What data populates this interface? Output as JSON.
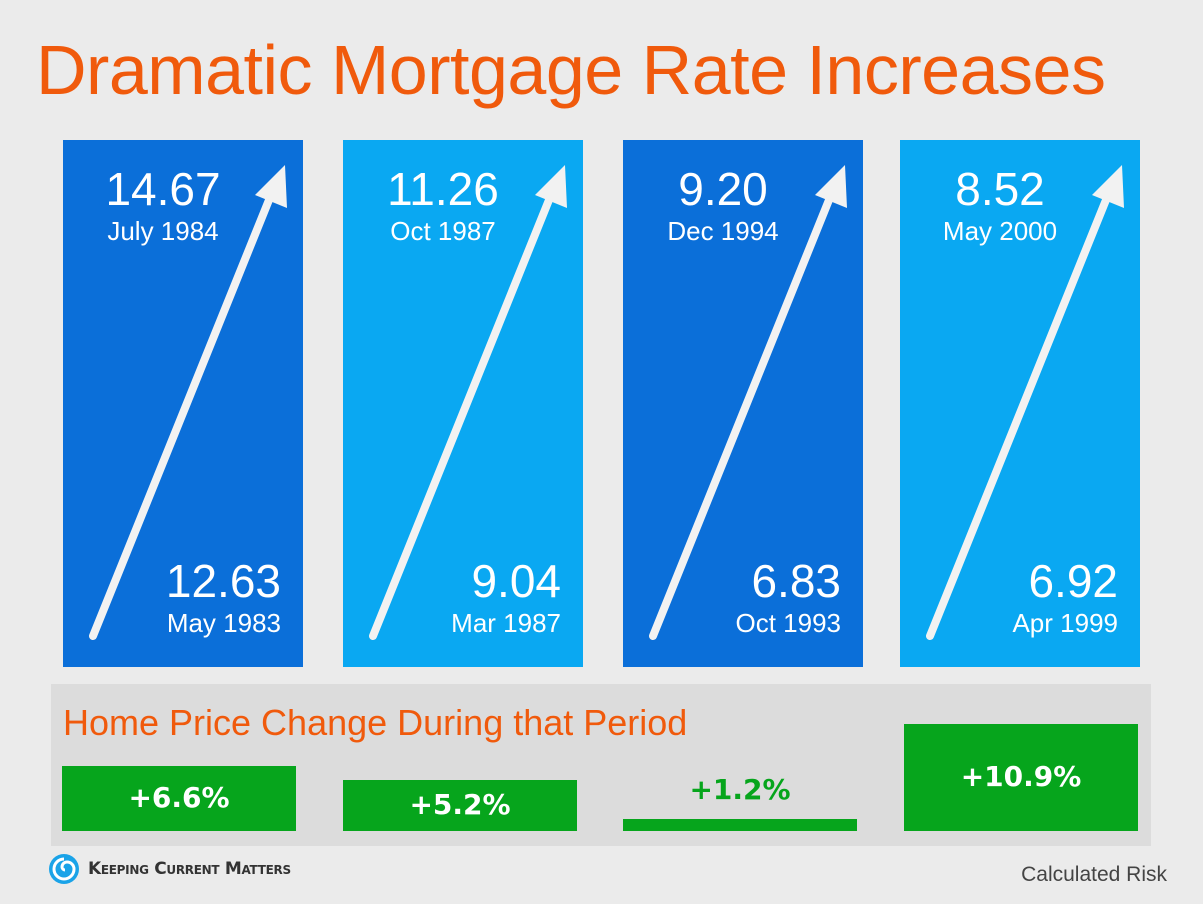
{
  "title": "Dramatic Mortgage Rate Increases",
  "colors": {
    "dark_panel": "#0b6fd9",
    "light_panel": "#0aa8f2",
    "accent": "#f05a0c",
    "green": "#06a51c"
  },
  "chart_data": {
    "type": "table",
    "title": "Dramatic Mortgage Rate Increases",
    "periods": [
      {
        "start_rate": "12.63",
        "start_date": "May 1983",
        "end_rate": "14.67",
        "end_date": "July 1984",
        "home_price_change": "+6.6%",
        "home_price_change_value": 6.6
      },
      {
        "start_rate": "9.04",
        "start_date": "Mar 1987",
        "end_rate": "11.26",
        "end_date": "Oct 1987",
        "home_price_change": "+5.2%",
        "home_price_change_value": 5.2
      },
      {
        "start_rate": "6.83",
        "start_date": "Oct 1993",
        "end_rate": "9.20",
        "end_date": "Dec 1994",
        "home_price_change": "+1.2%",
        "home_price_change_value": 1.2
      },
      {
        "start_rate": "6.92",
        "start_date": "Apr 1999",
        "end_rate": "8.52",
        "end_date": "May 2000",
        "home_price_change": "+10.9%",
        "home_price_change_value": 10.9
      }
    ],
    "subtitle": "Home Price Change During that Period"
  },
  "footer": {
    "logo_text": "Keeping Current Matters",
    "source": "Calculated Risk"
  }
}
